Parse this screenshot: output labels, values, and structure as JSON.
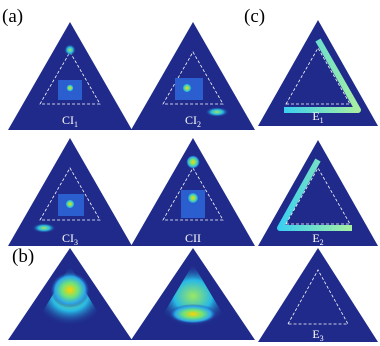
{
  "panels": {
    "a": {
      "tag": "(a)",
      "labels": [
        {
          "main": "CI",
          "sub": "1"
        },
        {
          "main": "CI",
          "sub": "2"
        },
        {
          "main": "CI",
          "sub": "3"
        },
        {
          "main": "CII"
        }
      ]
    },
    "b": {
      "tag": "(b)"
    },
    "c": {
      "tag": "(c)",
      "labels": [
        {
          "main": "E",
          "sub": "1"
        },
        {
          "main": "E",
          "sub": "2"
        },
        {
          "main": "E",
          "sub": "3"
        }
      ]
    }
  }
}
